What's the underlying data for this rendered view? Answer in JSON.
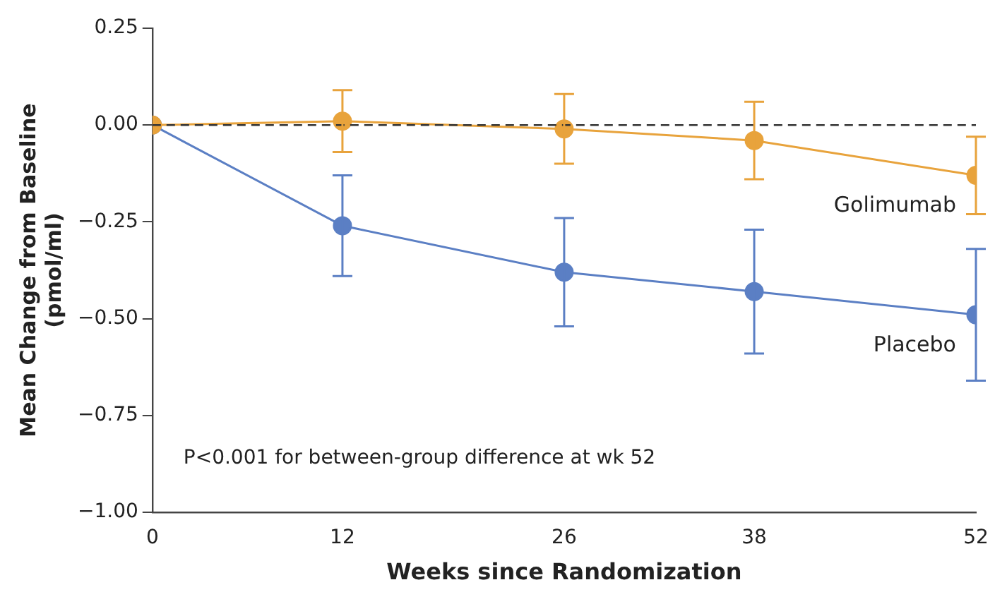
{
  "chart_data": {
    "type": "line",
    "xlabel": "Weeks since Randomization",
    "ylabel": "Mean Change from Baseline\n(pmol/ml)",
    "x": [
      0,
      12,
      26,
      38,
      52
    ],
    "series": [
      {
        "name": "Golimumab",
        "color": "#e8a33c",
        "values": [
          0,
          0.01,
          -0.01,
          -0.04,
          -0.13
        ],
        "errors": [
          null,
          0.08,
          0.09,
          0.1,
          0.1
        ]
      },
      {
        "name": "Placebo",
        "color": "#5b7fc4",
        "values": [
          0,
          -0.26,
          -0.38,
          -0.43,
          -0.49
        ],
        "errors": [
          null,
          0.13,
          0.14,
          0.16,
          0.17
        ]
      }
    ],
    "xlim": [
      0,
      52
    ],
    "xticks": [
      0,
      12,
      26,
      38,
      52
    ],
    "ylim": [
      -1,
      0.25
    ],
    "yticks": [
      {
        "value": -1,
        "label": "−1.00"
      },
      {
        "value": -0.75,
        "label": "−0.75"
      },
      {
        "value": -0.5,
        "label": "−0.50"
      },
      {
        "value": -0.25,
        "label": "−0.25"
      },
      {
        "value": 0,
        "label": "0.00"
      },
      {
        "value": 0.25,
        "label": "0.25"
      }
    ],
    "ref_lines": [
      {
        "axis": "y",
        "value": 0,
        "color": "#333333",
        "line_style": "dashed"
      }
    ],
    "annotations": [
      "P<0.001 for between-group difference at wk 52"
    ],
    "grid": false,
    "legend": false,
    "marker": "circle",
    "line_style": "solid"
  }
}
